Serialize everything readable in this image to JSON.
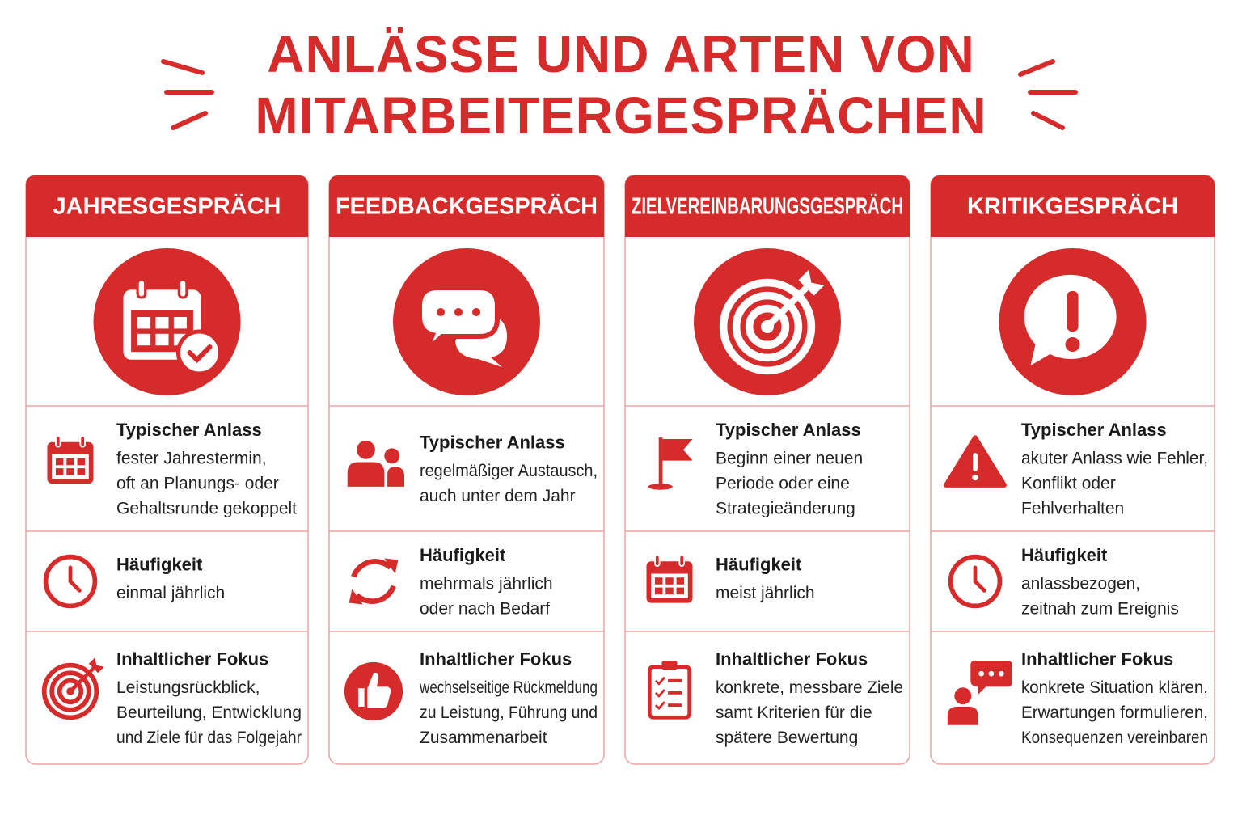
{
  "title": [
    "ANLÄSSE UND ARTEN VON",
    "MITARBEITERGESPRÄCHEN"
  ],
  "cards": [
    {
      "title": "JAHRESGESPRÄCH",
      "rows": [
        {
          "label": "Typischer Anlass",
          "lines": [
            "fester Jahrestermin,",
            "oft an Planungs- oder",
            "Gehaltsrunde gekoppelt"
          ]
        },
        {
          "label": "Häufigkeit",
          "lines": [
            "einmal jährlich"
          ]
        },
        {
          "label": "Inhaltlicher Fokus",
          "lines": [
            "Leistungsrückblick,",
            "Beurteilung, Entwicklung",
            "und Ziele für das Folgejahr"
          ]
        }
      ]
    },
    {
      "title": "FEEDBACKGESPRÄCH",
      "rows": [
        {
          "label": "Typischer Anlass",
          "lines": [
            "regelmäßiger Austausch,",
            "auch unter dem Jahr"
          ]
        },
        {
          "label": "Häufigkeit",
          "lines": [
            "mehrmals jährlich",
            "oder nach Bedarf"
          ]
        },
        {
          "label": "Inhaltlicher Fokus",
          "lines": [
            "wechselseitige Rückmeldung",
            "zu Leistung, Führung und",
            "Zusammenarbeit"
          ]
        }
      ]
    },
    {
      "title": "ZIELVEREINBARUNGSGESPRÄCH",
      "rows": [
        {
          "label": "Typischer Anlass",
          "lines": [
            "Beginn einer neuen",
            "Periode oder eine",
            "Strategieänderung"
          ]
        },
        {
          "label": "Häufigkeit",
          "lines": [
            "meist jährlich"
          ]
        },
        {
          "label": "Inhaltlicher Fokus",
          "lines": [
            "konkrete, messbare Ziele",
            "samt Kriterien für die",
            "spätere Bewertung"
          ]
        }
      ]
    },
    {
      "title": "KRITIKGESPRÄCH",
      "rows": [
        {
          "label": "Typischer Anlass",
          "lines": [
            "akuter Anlass wie Fehler,",
            "Konflikt oder",
            "Fehlverhalten"
          ]
        },
        {
          "label": "Häufigkeit",
          "lines": [
            "anlassbezogen,",
            "zeitnah zum Ereignis"
          ]
        },
        {
          "label": "Inhaltlicher Fokus",
          "lines": [
            "konkrete Situation klären,",
            "Erwartungen formulieren,",
            "Konsequenzen vereinbaren"
          ]
        }
      ]
    }
  ]
}
